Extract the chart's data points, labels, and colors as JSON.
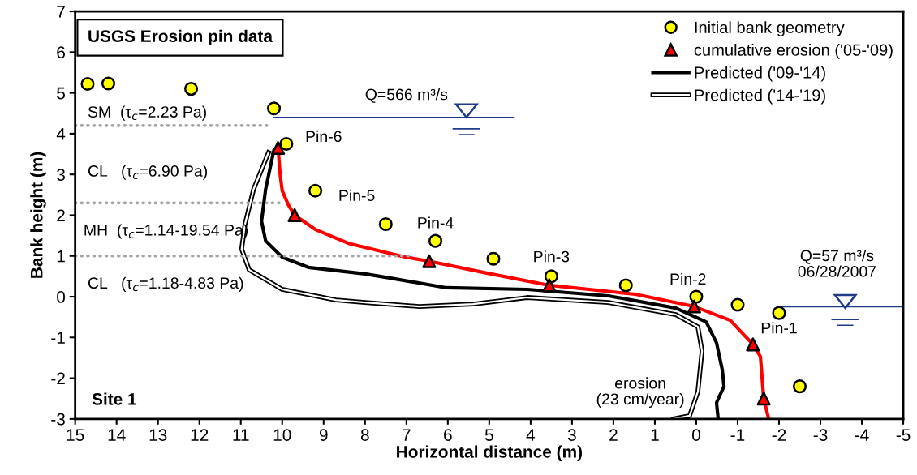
{
  "chart_data": {
    "type": "line",
    "title": "USGS Erosion pin data",
    "xlabel": "Horizontal distance (m)",
    "ylabel": "Bank height (m)",
    "xlim": [
      15,
      -5
    ],
    "xticks": [
      15,
      14,
      13,
      12,
      11,
      10,
      9,
      8,
      7,
      6,
      5,
      4,
      3,
      2,
      1,
      0,
      -1,
      -2,
      -3,
      -4,
      -5
    ],
    "ylim": [
      -3,
      7
    ],
    "yticks": [
      -3,
      -2,
      -1,
      0,
      1,
      2,
      3,
      4,
      5,
      6,
      7
    ],
    "grid": false,
    "legend": "top right",
    "series": [
      {
        "name": "Initial bank geometry",
        "type": "scatter",
        "marker": "circle",
        "color": "#ffff00",
        "x": [
          14.7,
          14.2,
          12.2,
          10.2,
          9.9,
          9.2,
          7.5,
          6.3,
          4.9,
          3.5,
          1.7,
          0,
          -1,
          -2,
          -2.5
        ],
        "values": [
          5.22,
          5.23,
          5.1,
          4.62,
          3.75,
          2.6,
          1.78,
          1.37,
          0.93,
          0.5,
          0.28,
          0.0,
          -0.2,
          -0.4,
          -2.2
        ]
      },
      {
        "name": "cumulative erosion ('05-'09)",
        "type": "scatter",
        "marker": "triangle",
        "color": "#ff0000",
        "x": [
          10.1,
          9.7,
          6.45,
          3.55,
          0.05,
          -1.37,
          -1.63
        ],
        "values": [
          3.65,
          2.0,
          0.87,
          0.28,
          -0.24,
          -1.17,
          -2.5
        ]
      },
      {
        "type": "line",
        "color": "#ff0000",
        "marker": "none",
        "line_style": "solid",
        "x": [
          10.1,
          10.05,
          10.0,
          9.85,
          9.7,
          9.2,
          8.4,
          7.06,
          6.45,
          5.06,
          3.55,
          1.47,
          0.05,
          -0.82,
          -1.37,
          -1.55,
          -1.63,
          -1.75
        ],
        "values": [
          3.65,
          3.0,
          2.6,
          2.25,
          2.0,
          1.65,
          1.31,
          0.98,
          0.87,
          0.58,
          0.28,
          0.06,
          -0.24,
          -0.58,
          -1.17,
          -1.47,
          -2.5,
          -3.0
        ]
      },
      {
        "name": "Predicted ('09-'14)",
        "color": "#000000",
        "marker": "none",
        "line_style": "solid",
        "x": [
          10.2,
          10.4,
          10.5,
          10.4,
          10.0,
          9.37,
          8.0,
          7.41,
          6.04,
          4.08,
          2.12,
          0.49,
          -0.24,
          -0.49,
          -0.63,
          -0.67,
          -0.49,
          -0.53
        ],
        "values": [
          3.6,
          2.64,
          1.85,
          1.37,
          0.97,
          0.72,
          0.56,
          0.46,
          0.22,
          0.18,
          0.02,
          -0.28,
          -0.62,
          -1.13,
          -1.8,
          -2.2,
          -2.6,
          -3.0
        ]
      },
      {
        "name": "Predicted ('14-'19)",
        "color": "#000000",
        "marker": "none",
        "line_style": "solid",
        "x": [
          10.33,
          10.69,
          10.9,
          10.98,
          10.8,
          10.0,
          8.7,
          8.0,
          6.69,
          5.39,
          4.08,
          2.12,
          0.49,
          -0.04,
          -0.14,
          -0.04,
          0.16,
          0.55
        ],
        "values": [
          3.54,
          2.64,
          1.77,
          1.17,
          0.66,
          0.18,
          -0.08,
          -0.14,
          -0.24,
          -0.18,
          -0.02,
          -0.14,
          -0.44,
          -0.74,
          -1.33,
          -2.33,
          -2.92,
          -3.0
        ]
      },
      {
        "type": "line",
        "color": "#a6a6a6",
        "marker": "none",
        "line_style": "dotted",
        "x": [
          15,
          10.3
        ],
        "values": [
          4.2,
          4.2
        ]
      },
      {
        "type": "line",
        "color": "#a6a6a6",
        "marker": "none",
        "line_style": "dotted",
        "x": [
          15,
          9.96
        ],
        "values": [
          2.3,
          2.3
        ]
      },
      {
        "type": "line",
        "color": "#a6a6a6",
        "marker": "none",
        "line_style": "dotted",
        "x": [
          15,
          6.9
        ],
        "values": [
          1.0,
          1.0
        ]
      },
      {
        "type": "line",
        "color": "#1f3c88",
        "marker": "none",
        "line_style": "solid",
        "x": [
          10.2,
          4.4
        ],
        "values": [
          4.4,
          4.4
        ]
      },
      {
        "type": "line",
        "color": "#1f3c88",
        "marker": "none",
        "line_style": "solid",
        "x": [
          -2.0,
          -5.0
        ],
        "values": [
          -0.25,
          -0.25
        ]
      }
    ],
    "annotations": [
      "Pin-6",
      "Pin-5",
      "Pin-4",
      "Pin-3",
      "Pin-2",
      "Pin-1",
      "Q=566 m³/s",
      "Q=57 m³/s\n06/28/2007",
      "SM  (τ$_{c}$=2.23 Pa)",
      "CL   (τ$_{c}$=6.90 Pa)",
      "MH  (τ$_{c}$=1.14-19.54 Pa)",
      "CL   (τ$_{c}$=1.18-4.83 Pa)",
      "erosion\n(23 cm/year)",
      "Site 1"
    ]
  }
}
